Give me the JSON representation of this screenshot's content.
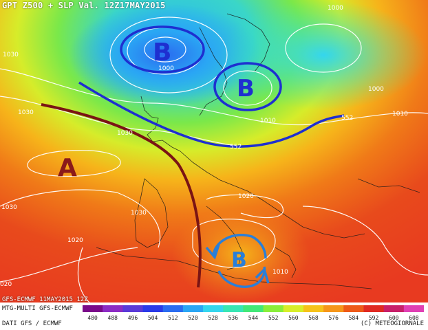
{
  "header": {
    "title": "GPT Z500 + SLP Val. 12Z17MAY2015"
  },
  "run_info": "GFS-ECMWF 11MAY2015 12Z",
  "footer": {
    "model": "MTG-MULTI GFS-ECMWF",
    "source": "DATI GFS / ECMWF",
    "copyright": "(C) METEOGIORNALE"
  },
  "scale": {
    "levels": [
      480,
      488,
      496,
      504,
      512,
      520,
      528,
      536,
      544,
      552,
      560,
      568,
      576,
      584,
      592,
      600,
      608
    ],
    "colors": [
      "#7a0a8a",
      "#8c2cc4",
      "#5a3ad8",
      "#2a3ae8",
      "#2a6cf0",
      "#2aa6f4",
      "#34d6ee",
      "#38e6b4",
      "#42e878",
      "#8aee3a",
      "#d8ee2a",
      "#f6c21a",
      "#f6961a",
      "#ee5a18",
      "#e02a22",
      "#c8206a",
      "#e040b4"
    ]
  },
  "centers": [
    {
      "symbol": "B",
      "color": "#1e2fd0"
    },
    {
      "symbol": "B",
      "color": "#1e2fd0"
    },
    {
      "symbol": "A",
      "color": "#8b1a1a"
    },
    {
      "symbol": "B",
      "color": "#2a7fd8"
    }
  ],
  "isobar_labels": [
    "1000",
    "1000",
    "1000",
    "1010",
    "1010",
    "1030",
    "1030",
    "1030",
    "1030",
    "1020",
    "1020",
    "1030",
    "1010",
    "020"
  ],
  "isohypse_labels": [
    "552",
    "552"
  ]
}
